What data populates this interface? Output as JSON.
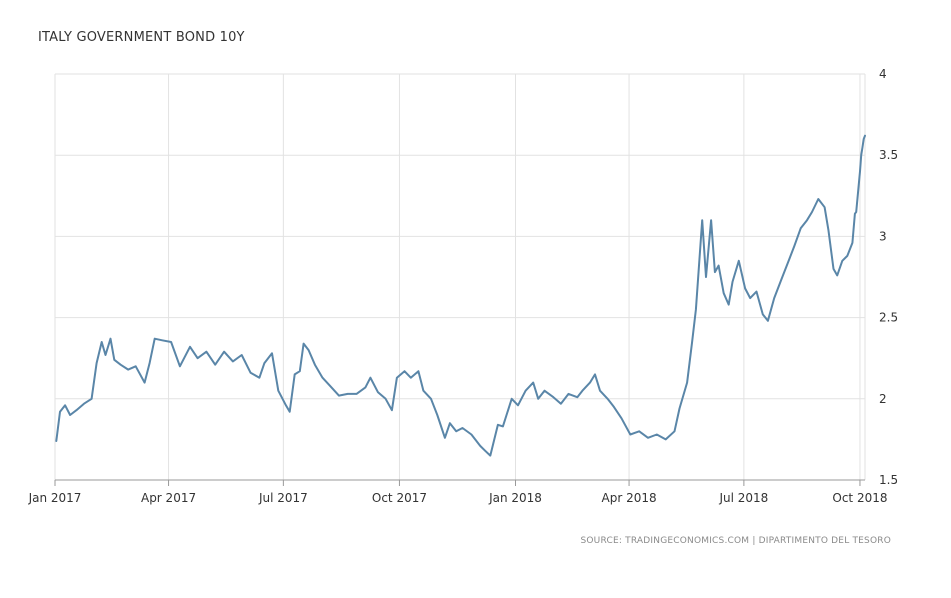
{
  "chart_data": {
    "type": "line",
    "title": "ITALY GOVERNMENT BOND 10Y",
    "source": "SOURCE: TRADINGECONOMICS.COM | DIPARTIMENTO DEL TESORO",
    "xlabel": "",
    "ylabel": "",
    "x_range": [
      "2017-01-01",
      "2018-10-05"
    ],
    "ylim": [
      1.5,
      4
    ],
    "y_axis_side": "right",
    "grid": "vertical and horizontal",
    "x_tick_labels": [
      {
        "date": "2017-01-01",
        "label": "Jan 2017"
      },
      {
        "date": "2017-04-01",
        "label": "Apr 2017"
      },
      {
        "date": "2017-07-01",
        "label": "Jul 2017"
      },
      {
        "date": "2017-10-01",
        "label": "Oct 2017"
      },
      {
        "date": "2018-01-01",
        "label": "Jan 2018"
      },
      {
        "date": "2018-04-01",
        "label": "Apr 2018"
      },
      {
        "date": "2018-07-01",
        "label": "Jul 2018"
      },
      {
        "date": "2018-10-01",
        "label": "Oct 2018"
      }
    ],
    "y_ticks": [
      {
        "value": 4,
        "label": "4"
      },
      {
        "value": 3.5,
        "label": "3.5"
      },
      {
        "value": 3,
        "label": "3"
      },
      {
        "value": 2.5,
        "label": "2.5"
      },
      {
        "value": 2,
        "label": "2"
      },
      {
        "value": 1.5,
        "label": "1.5"
      }
    ],
    "series": [
      {
        "color": "#5a86a8",
        "points": [
          [
            "2017-01-02",
            1.74
          ],
          [
            "2017-01-05",
            1.92
          ],
          [
            "2017-01-09",
            1.96
          ],
          [
            "2017-01-13",
            1.9
          ],
          [
            "2017-01-18",
            1.93
          ],
          [
            "2017-01-24",
            1.97
          ],
          [
            "2017-01-30",
            2.0
          ],
          [
            "2017-02-03",
            2.22
          ],
          [
            "2017-02-07",
            2.35
          ],
          [
            "2017-02-10",
            2.27
          ],
          [
            "2017-02-14",
            2.37
          ],
          [
            "2017-02-17",
            2.24
          ],
          [
            "2017-02-22",
            2.21
          ],
          [
            "2017-02-28",
            2.18
          ],
          [
            "2017-03-06",
            2.2
          ],
          [
            "2017-03-13",
            2.1
          ],
          [
            "2017-03-17",
            2.22
          ],
          [
            "2017-03-21",
            2.37
          ],
          [
            "2017-03-27",
            2.36
          ],
          [
            "2017-04-03",
            2.35
          ],
          [
            "2017-04-10",
            2.2
          ],
          [
            "2017-04-18",
            2.32
          ],
          [
            "2017-04-24",
            2.25
          ],
          [
            "2017-05-01",
            2.29
          ],
          [
            "2017-05-08",
            2.21
          ],
          [
            "2017-05-15",
            2.29
          ],
          [
            "2017-05-22",
            2.23
          ],
          [
            "2017-05-29",
            2.27
          ],
          [
            "2017-06-05",
            2.16
          ],
          [
            "2017-06-12",
            2.13
          ],
          [
            "2017-06-16",
            2.22
          ],
          [
            "2017-06-22",
            2.28
          ],
          [
            "2017-06-27",
            2.05
          ],
          [
            "2017-07-03",
            1.96
          ],
          [
            "2017-07-06",
            1.92
          ],
          [
            "2017-07-10",
            2.15
          ],
          [
            "2017-07-14",
            2.17
          ],
          [
            "2017-07-17",
            2.34
          ],
          [
            "2017-07-21",
            2.3
          ],
          [
            "2017-07-26",
            2.21
          ],
          [
            "2017-08-01",
            2.13
          ],
          [
            "2017-08-07",
            2.08
          ],
          [
            "2017-08-14",
            2.02
          ],
          [
            "2017-08-21",
            2.03
          ],
          [
            "2017-08-28",
            2.03
          ],
          [
            "2017-09-04",
            2.07
          ],
          [
            "2017-09-08",
            2.13
          ],
          [
            "2017-09-14",
            2.04
          ],
          [
            "2017-09-20",
            2.0
          ],
          [
            "2017-09-25",
            1.93
          ],
          [
            "2017-09-29",
            2.13
          ],
          [
            "2017-10-05",
            2.17
          ],
          [
            "2017-10-10",
            2.13
          ],
          [
            "2017-10-16",
            2.17
          ],
          [
            "2017-10-20",
            2.05
          ],
          [
            "2017-10-26",
            2.0
          ],
          [
            "2017-10-31",
            1.9
          ],
          [
            "2017-11-06",
            1.76
          ],
          [
            "2017-11-10",
            1.85
          ],
          [
            "2017-11-15",
            1.8
          ],
          [
            "2017-11-20",
            1.82
          ],
          [
            "2017-11-27",
            1.78
          ],
          [
            "2017-12-04",
            1.71
          ],
          [
            "2017-12-08",
            1.68
          ],
          [
            "2017-12-12",
            1.65
          ],
          [
            "2017-12-18",
            1.84
          ],
          [
            "2017-12-22",
            1.83
          ],
          [
            "2017-12-29",
            2.0
          ],
          [
            "2018-01-03",
            1.96
          ],
          [
            "2018-01-09",
            2.05
          ],
          [
            "2018-01-15",
            2.1
          ],
          [
            "2018-01-19",
            2.0
          ],
          [
            "2018-01-24",
            2.05
          ],
          [
            "2018-01-31",
            2.01
          ],
          [
            "2018-02-06",
            1.97
          ],
          [
            "2018-02-12",
            2.03
          ],
          [
            "2018-02-19",
            2.01
          ],
          [
            "2018-02-23",
            2.05
          ],
          [
            "2018-03-01",
            2.1
          ],
          [
            "2018-03-05",
            2.15
          ],
          [
            "2018-03-09",
            2.05
          ],
          [
            "2018-03-15",
            2.0
          ],
          [
            "2018-03-20",
            1.95
          ],
          [
            "2018-03-26",
            1.88
          ],
          [
            "2018-04-02",
            1.78
          ],
          [
            "2018-04-09",
            1.8
          ],
          [
            "2018-04-16",
            1.76
          ],
          [
            "2018-04-23",
            1.78
          ],
          [
            "2018-04-30",
            1.75
          ],
          [
            "2018-05-07",
            1.8
          ],
          [
            "2018-05-11",
            1.94
          ],
          [
            "2018-05-17",
            2.1
          ],
          [
            "2018-05-21",
            2.35
          ],
          [
            "2018-05-24",
            2.55
          ],
          [
            "2018-05-29",
            3.1
          ],
          [
            "2018-06-01",
            2.75
          ],
          [
            "2018-06-05",
            3.1
          ],
          [
            "2018-06-08",
            2.78
          ],
          [
            "2018-06-11",
            2.82
          ],
          [
            "2018-06-15",
            2.65
          ],
          [
            "2018-06-19",
            2.58
          ],
          [
            "2018-06-22",
            2.72
          ],
          [
            "2018-06-27",
            2.85
          ],
          [
            "2018-07-02",
            2.68
          ],
          [
            "2018-07-06",
            2.62
          ],
          [
            "2018-07-11",
            2.66
          ],
          [
            "2018-07-16",
            2.52
          ],
          [
            "2018-07-20",
            2.48
          ],
          [
            "2018-07-25",
            2.62
          ],
          [
            "2018-07-31",
            2.74
          ],
          [
            "2018-08-06",
            2.86
          ],
          [
            "2018-08-10",
            2.94
          ],
          [
            "2018-08-15",
            3.05
          ],
          [
            "2018-08-20",
            3.1
          ],
          [
            "2018-08-24",
            3.15
          ],
          [
            "2018-08-29",
            3.23
          ],
          [
            "2018-09-03",
            3.18
          ],
          [
            "2018-09-06",
            3.04
          ],
          [
            "2018-09-10",
            2.8
          ],
          [
            "2018-09-13",
            2.76
          ],
          [
            "2018-09-17",
            2.85
          ],
          [
            "2018-09-21",
            2.88
          ],
          [
            "2018-09-25",
            2.96
          ],
          [
            "2018-09-27",
            3.14
          ],
          [
            "2018-09-28",
            3.15
          ],
          [
            "2018-10-01",
            3.4
          ],
          [
            "2018-10-02",
            3.5
          ],
          [
            "2018-10-03",
            3.55
          ],
          [
            "2018-10-04",
            3.6
          ],
          [
            "2018-10-05",
            3.62
          ]
        ]
      }
    ]
  }
}
